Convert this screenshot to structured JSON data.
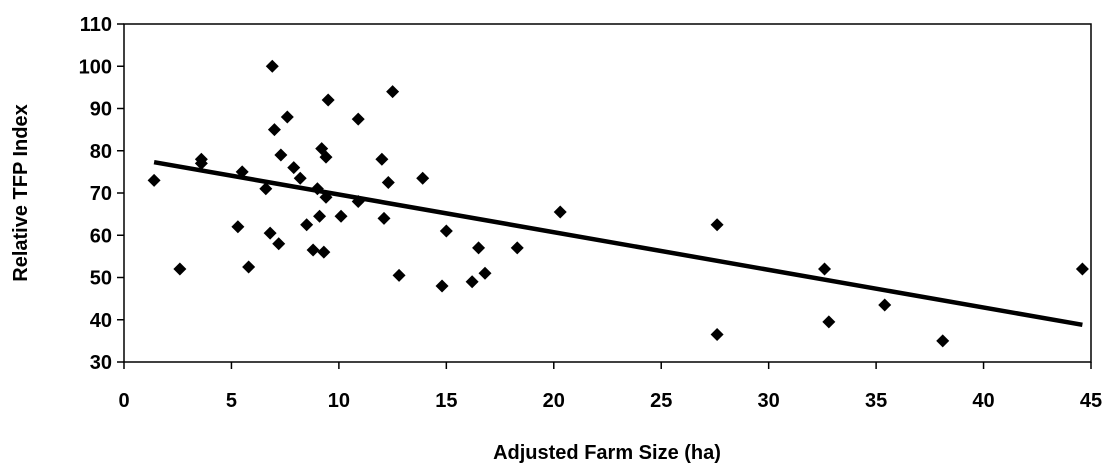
{
  "chart_data": {
    "type": "scatter",
    "title": "",
    "xlabel": "Adjusted Farm Size (ha)",
    "ylabel": "Relative TFP Index",
    "xlim": [
      0,
      45
    ],
    "ylim": [
      30,
      110
    ],
    "x_ticks": [
      0,
      5,
      10,
      15,
      20,
      25,
      30,
      35,
      40,
      45
    ],
    "y_ticks": [
      30,
      40,
      50,
      60,
      70,
      80,
      90,
      100,
      110
    ],
    "grid": false,
    "legend": "none",
    "marker": "diamond",
    "marker_color": "#000000",
    "points": [
      [
        1.4,
        73
      ],
      [
        2.6,
        52
      ],
      [
        3.6,
        78
      ],
      [
        3.6,
        77
      ],
      [
        5.3,
        62
      ],
      [
        5.5,
        75
      ],
      [
        5.8,
        52.5
      ],
      [
        6.6,
        71
      ],
      [
        6.8,
        60.5
      ],
      [
        6.9,
        100
      ],
      [
        7.0,
        85
      ],
      [
        7.2,
        58
      ],
      [
        7.3,
        79
      ],
      [
        7.6,
        88
      ],
      [
        7.9,
        76
      ],
      [
        8.2,
        73.5
      ],
      [
        8.5,
        62.5
      ],
      [
        8.8,
        56.5
      ],
      [
        9.0,
        71
      ],
      [
        9.1,
        64.5
      ],
      [
        9.2,
        80.5
      ],
      [
        9.3,
        56
      ],
      [
        9.4,
        69
      ],
      [
        9.4,
        78.5
      ],
      [
        9.5,
        92
      ],
      [
        10.1,
        64.5
      ],
      [
        10.9,
        87.5
      ],
      [
        10.9,
        68
      ],
      [
        12.0,
        78
      ],
      [
        12.1,
        64
      ],
      [
        12.3,
        72.5
      ],
      [
        12.5,
        94
      ],
      [
        12.8,
        50.5
      ],
      [
        13.9,
        73.5
      ],
      [
        14.8,
        48
      ],
      [
        15.0,
        61
      ],
      [
        16.2,
        49
      ],
      [
        16.5,
        57
      ],
      [
        16.8,
        51
      ],
      [
        18.3,
        57
      ],
      [
        20.3,
        65.5
      ],
      [
        27.6,
        62.5
      ],
      [
        27.6,
        36.5
      ],
      [
        32.6,
        52
      ],
      [
        32.8,
        39.5
      ],
      [
        35.4,
        43.5
      ],
      [
        38.1,
        35
      ],
      [
        44.6,
        52
      ]
    ],
    "trendline": {
      "x": [
        1.4,
        44.6
      ],
      "y": [
        77.3,
        38.8
      ]
    }
  }
}
